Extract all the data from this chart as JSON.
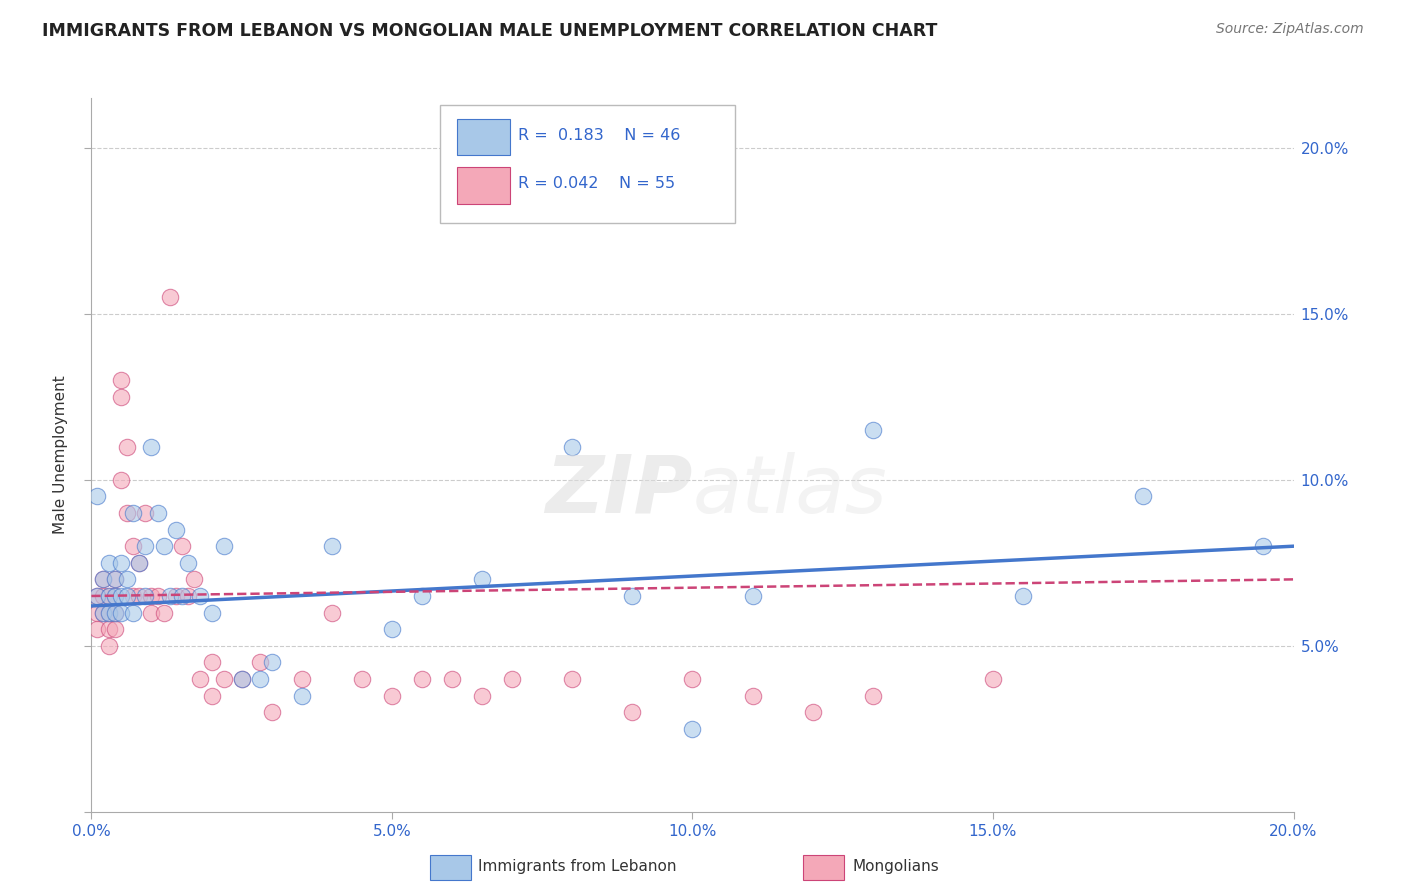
{
  "title": "IMMIGRANTS FROM LEBANON VS MONGOLIAN MALE UNEMPLOYMENT CORRELATION CHART",
  "source": "Source: ZipAtlas.com",
  "ylabel_label": "Male Unemployment",
  "xlim": [
    0.0,
    0.2
  ],
  "ylim": [
    0.0,
    0.215
  ],
  "yticks": [
    0.0,
    0.05,
    0.1,
    0.15,
    0.2
  ],
  "xticks": [
    0.0,
    0.05,
    0.1,
    0.15,
    0.2
  ],
  "xtick_labels": [
    "0.0%",
    "5.0%",
    "10.0%",
    "15.0%",
    "20.0%"
  ],
  "right_ytick_labels": [
    "",
    "5.0%",
    "10.0%",
    "15.0%",
    "20.0%"
  ],
  "blue_color": "#a8c8e8",
  "pink_color": "#f4a8b8",
  "line_blue": "#4477cc",
  "line_pink": "#cc4477",
  "watermark": "ZIPatlas",
  "blue_x": [
    0.001,
    0.001,
    0.002,
    0.002,
    0.003,
    0.003,
    0.003,
    0.004,
    0.004,
    0.004,
    0.005,
    0.005,
    0.005,
    0.006,
    0.006,
    0.007,
    0.007,
    0.008,
    0.009,
    0.009,
    0.01,
    0.011,
    0.012,
    0.013,
    0.014,
    0.015,
    0.016,
    0.018,
    0.02,
    0.022,
    0.025,
    0.028,
    0.03,
    0.035,
    0.04,
    0.05,
    0.055,
    0.065,
    0.08,
    0.09,
    0.1,
    0.11,
    0.13,
    0.155,
    0.175,
    0.195
  ],
  "blue_y": [
    0.065,
    0.095,
    0.06,
    0.07,
    0.065,
    0.06,
    0.075,
    0.065,
    0.07,
    0.06,
    0.065,
    0.075,
    0.06,
    0.065,
    0.07,
    0.06,
    0.09,
    0.075,
    0.08,
    0.065,
    0.11,
    0.09,
    0.08,
    0.065,
    0.085,
    0.065,
    0.075,
    0.065,
    0.06,
    0.08,
    0.04,
    0.04,
    0.045,
    0.035,
    0.08,
    0.055,
    0.065,
    0.07,
    0.11,
    0.065,
    0.025,
    0.065,
    0.115,
    0.065,
    0.095,
    0.08
  ],
  "pink_x": [
    0.001,
    0.001,
    0.001,
    0.002,
    0.002,
    0.002,
    0.003,
    0.003,
    0.003,
    0.003,
    0.004,
    0.004,
    0.004,
    0.004,
    0.005,
    0.005,
    0.005,
    0.006,
    0.006,
    0.007,
    0.007,
    0.008,
    0.008,
    0.009,
    0.01,
    0.01,
    0.011,
    0.012,
    0.013,
    0.014,
    0.015,
    0.016,
    0.017,
    0.018,
    0.02,
    0.02,
    0.022,
    0.025,
    0.028,
    0.03,
    0.035,
    0.04,
    0.045,
    0.05,
    0.055,
    0.06,
    0.065,
    0.07,
    0.08,
    0.09,
    0.1,
    0.11,
    0.12,
    0.13,
    0.15
  ],
  "pink_y": [
    0.065,
    0.06,
    0.055,
    0.07,
    0.065,
    0.06,
    0.065,
    0.06,
    0.055,
    0.05,
    0.07,
    0.065,
    0.06,
    0.055,
    0.13,
    0.125,
    0.1,
    0.11,
    0.09,
    0.08,
    0.065,
    0.075,
    0.065,
    0.09,
    0.065,
    0.06,
    0.065,
    0.06,
    0.155,
    0.065,
    0.08,
    0.065,
    0.07,
    0.04,
    0.045,
    0.035,
    0.04,
    0.04,
    0.045,
    0.03,
    0.04,
    0.06,
    0.04,
    0.035,
    0.04,
    0.04,
    0.035,
    0.04,
    0.04,
    0.03,
    0.04,
    0.035,
    0.03,
    0.035,
    0.04
  ],
  "blue_line_x": [
    0.0,
    0.2
  ],
  "blue_line_y": [
    0.062,
    0.08
  ],
  "pink_line_x": [
    0.0,
    0.2
  ],
  "pink_line_y": [
    0.065,
    0.07
  ]
}
